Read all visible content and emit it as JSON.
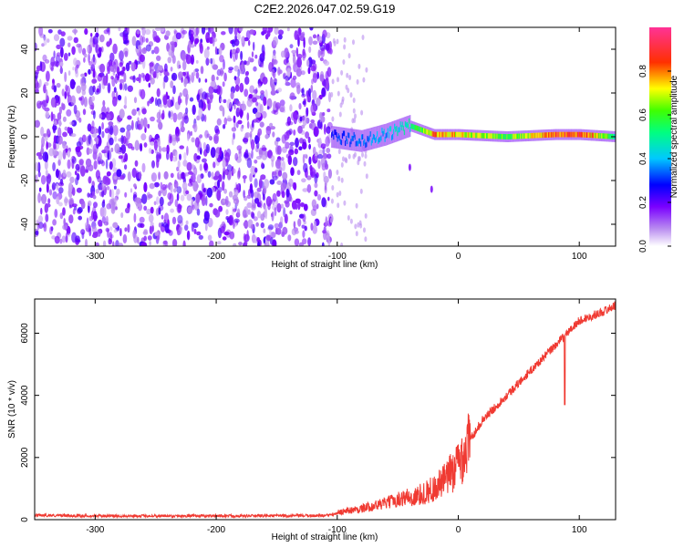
{
  "title": "C2E2.2026.047.02.59.G19",
  "colors": {
    "snr_line": "#f03a32",
    "spectrogram_noise": "#8a2be2",
    "spectrogram_ridge": "#00c8c8",
    "axis": "#000000"
  },
  "chart_data": [
    {
      "type": "heatmap",
      "xlabel": "Height of straight line (km)",
      "ylabel": "Frequency (Hz)",
      "xlim": [
        -350,
        130
      ],
      "ylim": [
        -50,
        50
      ],
      "x_ticks": [
        -300,
        -200,
        -100,
        0,
        100
      ],
      "y_ticks": [
        -40,
        -20,
        0,
        20,
        40
      ],
      "colorbar": {
        "label": "Normalized spectral amplitude",
        "range": [
          0.0,
          1.0
        ],
        "ticks": [
          "0.0",
          "0.2",
          "0.4",
          "0.6",
          "0.8"
        ],
        "colormap": "rainbow (purple-blue-cyan-green-yellow-red-pink)"
      },
      "features": {
        "noise_region_x": [
          -350,
          -105
        ],
        "noise_level": 0.1,
        "carrier_frequency_x": [
          -105,
          -80,
          -60,
          -40,
          -20,
          0,
          40,
          80,
          100,
          130
        ],
        "carrier_frequency_y": [
          0,
          -2,
          1,
          5,
          1,
          1,
          0,
          1,
          1,
          0
        ],
        "carrier_amplitude": [
          0.3,
          0.35,
          0.4,
          0.5,
          0.8,
          0.75,
          0.6,
          0.85,
          0.9,
          0.5
        ]
      }
    },
    {
      "type": "line",
      "xlabel": "Height of straight line (km)",
      "ylabel": "SNR (10 * v/v)",
      "xlim": [
        -350,
        130
      ],
      "ylim": [
        0,
        7100
      ],
      "x_ticks": [
        -300,
        -200,
        -100,
        0,
        100
      ],
      "y_ticks": [
        0,
        2000,
        4000,
        6000
      ],
      "series": [
        {
          "x": [
            -350,
            -300,
            -200,
            -110,
            -100,
            -80,
            -60,
            -40,
            -20,
            -10,
            0,
            10,
            20,
            40,
            60,
            80,
            100,
            120,
            130
          ],
          "values": [
            140,
            120,
            120,
            130,
            200,
            300,
            450,
            650,
            1000,
            1300,
            1800,
            2600,
            3200,
            4000,
            4800,
            5600,
            6400,
            6700,
            6900
          ]
        }
      ]
    }
  ]
}
